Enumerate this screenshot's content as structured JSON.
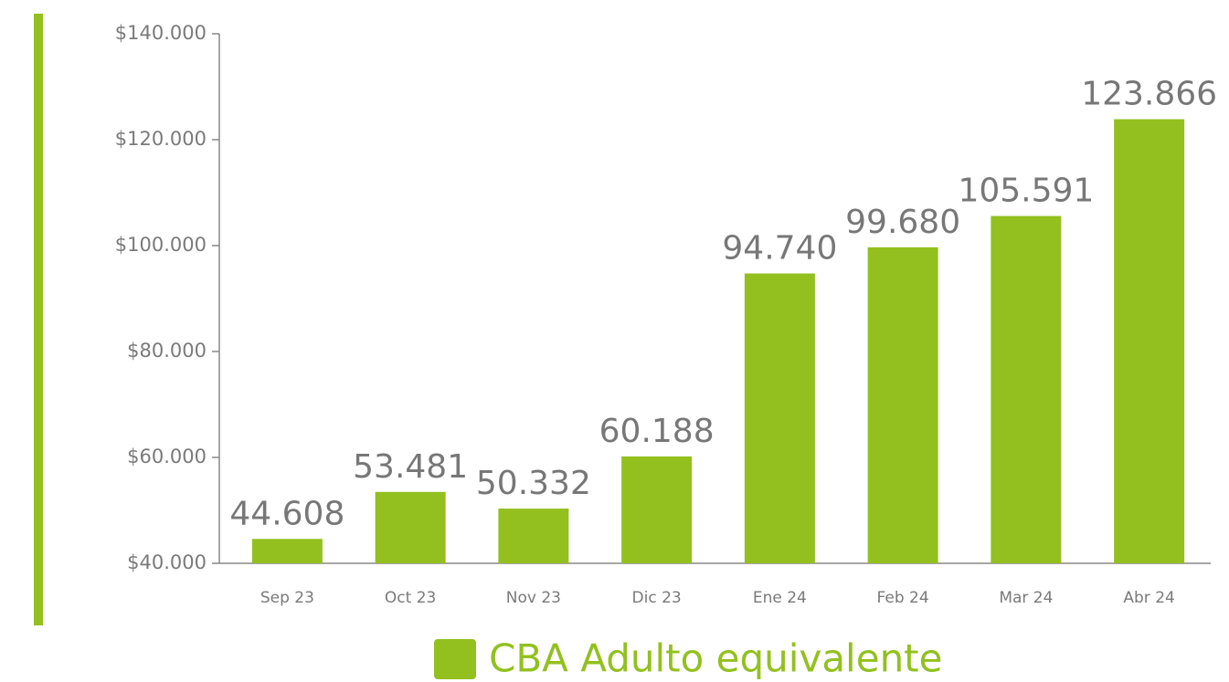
{
  "chart_data": {
    "type": "bar",
    "categories": [
      "Sep 23",
      "Oct 23",
      "Nov 23",
      "Dic 23",
      "Ene 24",
      "Feb 24",
      "Mar 24",
      "Abr 24"
    ],
    "series": [
      {
        "name": "CBA Adulto equivalente",
        "color": "#93c01f",
        "values": [
          44608,
          53481,
          50332,
          60188,
          94740,
          99680,
          105591,
          123866
        ],
        "value_labels": [
          "44.608",
          "53.481",
          "50.332",
          "60.188",
          "94.740",
          "99.680",
          "105.591",
          "123.866"
        ]
      }
    ],
    "ylim": [
      40000,
      140000
    ],
    "yticks": [
      {
        "value": 40000,
        "label": "$40.000"
      },
      {
        "value": 60000,
        "label": "$60.000"
      },
      {
        "value": 80000,
        "label": "$80.000"
      },
      {
        "value": 100000,
        "label": "$100.000"
      },
      {
        "value": 120000,
        "label": "$120.000"
      },
      {
        "value": 140000,
        "label": "$140.000"
      }
    ],
    "grid": false,
    "legend": "bottom"
  }
}
